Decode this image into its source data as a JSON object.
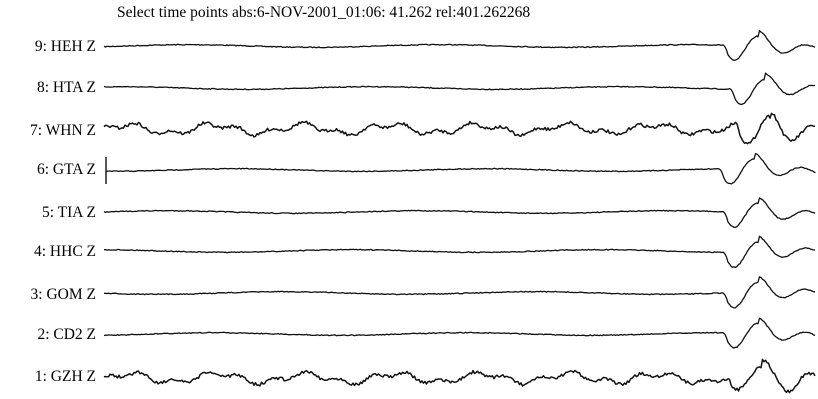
{
  "window": {
    "header_text": "Select time points abs:6-NOV-2001_01:06: 41.262 rel:401.262268"
  },
  "traces": [
    {
      "label": "9: HEH Z",
      "noise": "low"
    },
    {
      "label": "8: HTA Z",
      "noise": "low"
    },
    {
      "label": "7: WHN Z",
      "noise": "high"
    },
    {
      "label": "6: GTA Z",
      "noise": "low",
      "has_pick_marker": true
    },
    {
      "label": "5: TIA Z",
      "noise": "low"
    },
    {
      "label": "4: HHC Z",
      "noise": "low"
    },
    {
      "label": "3: GOM Z",
      "noise": "low"
    },
    {
      "label": "2: CD2 Z",
      "noise": "low"
    },
    {
      "label": "1: GZH Z",
      "noise": "high"
    }
  ],
  "colors": {
    "trace": "#111111",
    "background": "#ffffff"
  }
}
